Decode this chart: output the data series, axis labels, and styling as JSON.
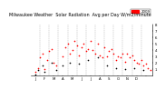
{
  "title": "Milwaukee Weather  Solar Radiation  Avg per Day W/m2/minute",
  "title_fontsize": 3.5,
  "background_color": "#ffffff",
  "plot_bg": "#ffffff",
  "grid_color": "#aaaaaa",
  "x_min": 0,
  "x_max": 53,
  "y_min": 0,
  "y_max": 8,
  "yticks": [
    1,
    2,
    3,
    4,
    5,
    6,
    7,
    8
  ],
  "ytick_labels": [
    "1",
    "2",
    "3",
    "4",
    "5",
    "6",
    "7",
    "8"
  ],
  "xtick_positions": [
    2,
    6,
    10,
    14,
    18,
    22,
    26,
    30,
    34,
    38,
    42,
    46,
    50
  ],
  "xtick_labels": [
    "J",
    "F",
    "M",
    "A",
    "M",
    "J",
    "J",
    "A",
    "S",
    "O",
    "N",
    "D",
    ""
  ],
  "legend_label": "2009",
  "legend_color": "#ff0000",
  "red_dots": [
    [
      2,
      0.5
    ],
    [
      3,
      1.2
    ],
    [
      4,
      2.8
    ],
    [
      5,
      3.5
    ],
    [
      6,
      1.0
    ],
    [
      7,
      2.5
    ],
    [
      8,
      3.8
    ],
    [
      9,
      4.2
    ],
    [
      10,
      2.0
    ],
    [
      11,
      1.5
    ],
    [
      14,
      3.0
    ],
    [
      15,
      4.5
    ],
    [
      16,
      5.0
    ],
    [
      17,
      3.5
    ],
    [
      18,
      4.0
    ],
    [
      19,
      5.5
    ],
    [
      20,
      4.8
    ],
    [
      21,
      3.2
    ],
    [
      22,
      4.5
    ],
    [
      23,
      5.0
    ],
    [
      24,
      3.8
    ],
    [
      25,
      4.2
    ],
    [
      26,
      5.5
    ],
    [
      27,
      4.0
    ],
    [
      28,
      3.5
    ],
    [
      29,
      5.0
    ],
    [
      30,
      3.2
    ],
    [
      31,
      2.8
    ],
    [
      32,
      4.5
    ],
    [
      33,
      3.0
    ],
    [
      34,
      3.8
    ],
    [
      35,
      4.2
    ],
    [
      36,
      3.5
    ],
    [
      37,
      2.5
    ],
    [
      38,
      3.0
    ],
    [
      39,
      2.8
    ],
    [
      40,
      3.5
    ],
    [
      41,
      2.2
    ],
    [
      42,
      3.5
    ],
    [
      43,
      2.8
    ],
    [
      44,
      3.2
    ],
    [
      45,
      2.5
    ],
    [
      46,
      2.0
    ],
    [
      47,
      1.8
    ],
    [
      48,
      2.5
    ],
    [
      49,
      1.5
    ],
    [
      50,
      1.8
    ],
    [
      51,
      1.2
    ],
    [
      52,
      0.8
    ]
  ],
  "black_dots": [
    [
      2,
      0.2
    ],
    [
      3,
      0.8
    ],
    [
      5,
      1.5
    ],
    [
      6,
      0.5
    ],
    [
      9,
      2.0
    ],
    [
      11,
      0.8
    ],
    [
      14,
      1.5
    ],
    [
      17,
      2.0
    ],
    [
      21,
      1.8
    ],
    [
      25,
      2.5
    ],
    [
      29,
      2.8
    ],
    [
      33,
      1.5
    ],
    [
      37,
      1.2
    ],
    [
      41,
      1.0
    ],
    [
      45,
      1.2
    ],
    [
      49,
      0.8
    ]
  ],
  "vgrid_positions": [
    4,
    8,
    12,
    16,
    20,
    24,
    28,
    32,
    36,
    40,
    44,
    48
  ],
  "dot_size": 1.2
}
